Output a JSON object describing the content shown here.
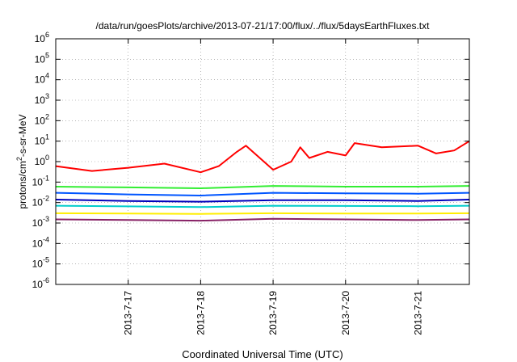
{
  "chart_data": {
    "type": "line",
    "title": "/data/run/goesPlots/archive/2013-07-21/17:00/flux/../flux/5daysEarthFluxes.txt",
    "xlabel": "Coordinated Universal Time (UTC)",
    "ylabel": {
      "prefix": "protons/cm",
      "sup": "2",
      "suffix": "-s-sr-MeV"
    },
    "y_scale": "log",
    "ylim": [
      1e-06,
      1000000.0
    ],
    "y_ticks": [
      {
        "value": 1000000.0,
        "base": "10",
        "exp": "6"
      },
      {
        "value": 100000.0,
        "base": "10",
        "exp": "5"
      },
      {
        "value": 10000.0,
        "base": "10",
        "exp": "4"
      },
      {
        "value": 1000.0,
        "base": "10",
        "exp": "3"
      },
      {
        "value": 100.0,
        "base": "10",
        "exp": "2"
      },
      {
        "value": 10.0,
        "base": "10",
        "exp": "1"
      },
      {
        "value": 1.0,
        "base": "10",
        "exp": "0"
      },
      {
        "value": 0.1,
        "base": "10",
        "exp": "-1"
      },
      {
        "value": 0.01,
        "base": "10",
        "exp": "-2"
      },
      {
        "value": 0.001,
        "base": "10",
        "exp": "-3"
      },
      {
        "value": 0.0001,
        "base": "10",
        "exp": "-4"
      },
      {
        "value": 1e-05,
        "base": "10",
        "exp": "-5"
      },
      {
        "value": 1e-06,
        "base": "10",
        "exp": "-6"
      }
    ],
    "xlim": [
      "2013-07-16 00:00",
      "2013-07-21 17:00"
    ],
    "x_ticks": [
      "2013-7-17",
      "2013-7-18",
      "2013-7-19",
      "2013-7-20",
      "2013-7-21"
    ],
    "grid": true,
    "series": [
      {
        "color": "#ff0000",
        "x": [
          "2013-07-16 00:00",
          "2013-07-16 12:00",
          "2013-07-17 00:00",
          "2013-07-17 12:00",
          "2013-07-18 00:00",
          "2013-07-18 06:00",
          "2013-07-18 12:00",
          "2013-07-18 15:00",
          "2013-07-19 00:00",
          "2013-07-19 06:00",
          "2013-07-19 09:00",
          "2013-07-19 12:00",
          "2013-07-19 18:00",
          "2013-07-20 00:00",
          "2013-07-20 03:00",
          "2013-07-20 12:00",
          "2013-07-21 00:00",
          "2013-07-21 06:00",
          "2013-07-21 12:00",
          "2013-07-21 17:00"
        ],
        "values": [
          0.6,
          0.35,
          0.5,
          0.8,
          0.3,
          0.6,
          3.0,
          6.0,
          0.4,
          1.0,
          5.0,
          1.5,
          3.0,
          2.0,
          8.0,
          5.0,
          6.0,
          2.5,
          3.5,
          10.0
        ]
      },
      {
        "color": "#33ee33",
        "x": [
          "2013-07-16 00:00",
          "2013-07-17 00:00",
          "2013-07-18 00:00",
          "2013-07-19 00:00",
          "2013-07-20 00:00",
          "2013-07-21 00:00",
          "2013-07-21 17:00"
        ],
        "values": [
          0.06,
          0.055,
          0.05,
          0.065,
          0.06,
          0.06,
          0.065
        ]
      },
      {
        "color": "#0055ff",
        "x": [
          "2013-07-16 00:00",
          "2013-07-17 00:00",
          "2013-07-18 00:00",
          "2013-07-19 00:00",
          "2013-07-20 00:00",
          "2013-07-21 00:00",
          "2013-07-21 17:00"
        ],
        "values": [
          0.03,
          0.025,
          0.022,
          0.03,
          0.028,
          0.027,
          0.03
        ]
      },
      {
        "color": "#0000bb",
        "x": [
          "2013-07-16 00:00",
          "2013-07-17 00:00",
          "2013-07-18 00:00",
          "2013-07-19 00:00",
          "2013-07-20 00:00",
          "2013-07-21 00:00",
          "2013-07-21 17:00"
        ],
        "values": [
          0.014,
          0.012,
          0.011,
          0.013,
          0.013,
          0.012,
          0.014
        ]
      },
      {
        "color": "#00cccc",
        "x": [
          "2013-07-16 00:00",
          "2013-07-17 00:00",
          "2013-07-18 00:00",
          "2013-07-19 00:00",
          "2013-07-20 00:00",
          "2013-07-21 00:00",
          "2013-07-21 17:00"
        ],
        "values": [
          0.007,
          0.0065,
          0.006,
          0.007,
          0.0068,
          0.0066,
          0.007
        ]
      },
      {
        "color": "#ffee00",
        "x": [
          "2013-07-16 00:00",
          "2013-07-17 00:00",
          "2013-07-18 00:00",
          "2013-07-19 00:00",
          "2013-07-20 00:00",
          "2013-07-21 00:00",
          "2013-07-21 17:00"
        ],
        "values": [
          0.003,
          0.0029,
          0.0028,
          0.003,
          0.0029,
          0.0029,
          0.003
        ]
      },
      {
        "color": "#882266",
        "x": [
          "2013-07-16 00:00",
          "2013-07-17 00:00",
          "2013-07-18 00:00",
          "2013-07-19 00:00",
          "2013-07-20 00:00",
          "2013-07-21 00:00",
          "2013-07-21 17:00"
        ],
        "values": [
          0.0015,
          0.0014,
          0.0013,
          0.0016,
          0.0015,
          0.0014,
          0.0015
        ]
      }
    ]
  }
}
